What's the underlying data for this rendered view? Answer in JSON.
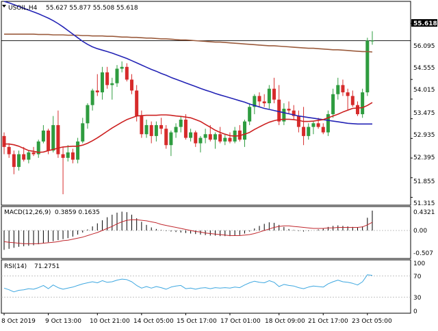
{
  "header": {
    "symbol": "USOIL,H4",
    "ohlc": "55.627 55.877 55.508 55.618"
  },
  "colors": {
    "bull": "#2e9c3f",
    "bear": "#d62b2b",
    "ma_fast": "#cc1f1f",
    "ma_slow": "#2323b5",
    "ma_long": "#9a5a3b",
    "macd_signal": "#c0262c",
    "rsi_line": "#3da7e0",
    "axis": "#000000",
    "grid_dot": "#b0b0b0"
  },
  "chart_data": [
    {
      "type": "candlestick",
      "title": "USOIL,H4",
      "current_price": "55.618",
      "ylim": [
        51.1,
        56.7
      ],
      "y_ticks": [
        "56.095",
        "55.618",
        "54.555",
        "54.015",
        "53.475",
        "52.935",
        "52.395",
        "51.855",
        "51.315"
      ],
      "x_ticks": [
        "8 Oct 2019",
        "9 Oct 13:00",
        "10 Oct 21:00",
        "14 Oct 05:00",
        "15 Oct 17:00",
        "17 Oct 01:00",
        "18 Oct 09:00",
        "21 Oct 17:00",
        "23 Oct 05:00"
      ],
      "candles": [
        [
          53.0,
          53.1,
          52.5,
          52.7
        ],
        [
          52.7,
          52.8,
          52.4,
          52.5
        ],
        [
          52.5,
          52.6,
          51.95,
          52.15
        ],
        [
          52.15,
          52.6,
          52.05,
          52.5
        ],
        [
          52.5,
          52.7,
          52.3,
          52.35
        ],
        [
          52.35,
          52.6,
          52.25,
          52.55
        ],
        [
          52.55,
          52.7,
          52.45,
          52.5
        ],
        [
          52.5,
          52.9,
          52.4,
          52.85
        ],
        [
          52.85,
          53.3,
          52.8,
          53.15
        ],
        [
          53.15,
          53.2,
          52.5,
          52.6
        ],
        [
          52.6,
          53.55,
          52.55,
          53.3
        ],
        [
          53.3,
          53.7,
          52.4,
          52.5
        ],
        [
          52.5,
          52.7,
          51.4,
          52.4
        ],
        [
          52.4,
          52.75,
          52.3,
          52.55
        ],
        [
          52.55,
          52.65,
          52.25,
          52.35
        ],
        [
          52.35,
          52.95,
          52.25,
          52.85
        ],
        [
          52.85,
          53.5,
          52.8,
          53.35
        ],
        [
          53.35,
          53.9,
          53.2,
          53.85
        ],
        [
          53.85,
          54.3,
          53.7,
          54.25
        ],
        [
          54.25,
          54.7,
          54.1,
          54.2
        ],
        [
          54.2,
          54.9,
          54.0,
          54.75
        ],
        [
          54.75,
          54.9,
          54.3,
          54.4
        ],
        [
          54.4,
          54.6,
          54.0,
          54.45
        ],
        [
          54.45,
          54.95,
          54.35,
          54.85
        ],
        [
          54.85,
          55.05,
          54.75,
          54.9
        ],
        [
          54.9,
          55.0,
          54.5,
          54.55
        ],
        [
          54.55,
          54.7,
          54.15,
          54.25
        ],
        [
          54.25,
          54.4,
          53.4,
          53.55
        ],
        [
          53.55,
          53.7,
          52.95,
          53.05
        ],
        [
          53.05,
          53.45,
          52.95,
          53.3
        ],
        [
          53.3,
          53.4,
          52.8,
          53.0
        ],
        [
          53.0,
          53.4,
          52.85,
          53.3
        ],
        [
          53.3,
          53.5,
          53.05,
          53.2
        ],
        [
          53.2,
          53.3,
          52.65,
          52.75
        ],
        [
          52.75,
          53.15,
          52.45,
          53.1
        ],
        [
          53.1,
          53.35,
          52.95,
          53.25
        ],
        [
          53.25,
          53.55,
          53.1,
          53.45
        ],
        [
          53.45,
          53.6,
          52.9,
          52.95
        ],
        [
          52.95,
          53.2,
          52.85,
          53.1
        ],
        [
          53.1,
          53.15,
          52.7,
          52.8
        ],
        [
          52.8,
          53.0,
          52.55,
          52.95
        ],
        [
          52.95,
          53.2,
          52.8,
          53.05
        ],
        [
          53.05,
          53.3,
          52.85,
          52.9
        ],
        [
          52.9,
          53.1,
          52.65,
          53.05
        ],
        [
          53.05,
          53.25,
          52.8,
          52.85
        ],
        [
          52.85,
          53.05,
          52.75,
          52.95
        ],
        [
          52.95,
          53.1,
          52.8,
          52.85
        ],
        [
          52.85,
          53.25,
          52.8,
          53.15
        ],
        [
          53.15,
          53.3,
          52.85,
          52.9
        ],
        [
          52.9,
          53.45,
          52.7,
          53.4
        ],
        [
          53.4,
          53.9,
          53.3,
          53.8
        ],
        [
          53.8,
          54.15,
          53.6,
          54.1
        ],
        [
          54.1,
          54.2,
          53.8,
          53.95
        ],
        [
          53.95,
          54.15,
          53.8,
          53.9
        ],
        [
          53.9,
          54.4,
          53.75,
          54.3
        ],
        [
          54.3,
          54.6,
          53.9,
          54.0
        ],
        [
          54.0,
          54.4,
          53.3,
          53.4
        ],
        [
          53.4,
          53.9,
          53.3,
          53.75
        ],
        [
          53.75,
          53.95,
          53.6,
          53.7
        ],
        [
          53.7,
          53.85,
          53.45,
          53.55
        ],
        [
          53.55,
          53.7,
          53.1,
          53.25
        ],
        [
          53.25,
          53.8,
          52.75,
          53.0
        ],
        [
          53.0,
          53.35,
          52.9,
          53.25
        ],
        [
          53.25,
          53.4,
          53.05,
          53.35
        ],
        [
          53.35,
          53.5,
          53.2,
          53.25
        ],
        [
          53.25,
          53.35,
          53.05,
          53.1
        ],
        [
          53.1,
          53.7,
          53.0,
          53.6
        ],
        [
          53.6,
          54.3,
          53.5,
          54.15
        ],
        [
          54.15,
          54.6,
          54.0,
          54.4
        ],
        [
          54.4,
          54.55,
          54.1,
          54.2
        ],
        [
          54.2,
          54.3,
          53.7,
          54.1
        ],
        [
          54.1,
          54.25,
          53.8,
          53.85
        ],
        [
          53.85,
          53.95,
          53.55,
          53.6
        ],
        [
          53.6,
          54.3,
          53.5,
          54.2
        ],
        [
          54.2,
          55.7,
          54.1,
          55.62
        ],
        [
          55.62,
          55.88,
          55.51,
          55.62
        ]
      ],
      "ma_fast": [
        52.78,
        52.78,
        52.76,
        52.72,
        52.66,
        52.6,
        52.58,
        52.55,
        52.56,
        52.6,
        52.63,
        52.67,
        52.7,
        52.71,
        52.72,
        52.72,
        52.75,
        52.8,
        52.87,
        52.95,
        53.04,
        53.13,
        53.22,
        53.3,
        53.38,
        53.45,
        53.5,
        53.55,
        53.56,
        53.57,
        53.57,
        53.57,
        53.58,
        53.58,
        53.57,
        53.55,
        53.54,
        53.52,
        53.5,
        53.45,
        53.4,
        53.32,
        53.24,
        53.16,
        53.1,
        53.05,
        53.01,
        53.0,
        53.01,
        53.05,
        53.1,
        53.18,
        53.25,
        53.32,
        53.38,
        53.42,
        53.45,
        53.46,
        53.46,
        53.45,
        53.43,
        53.4,
        53.4,
        53.41,
        53.43,
        53.45,
        53.5,
        53.55,
        53.6,
        53.66,
        53.71,
        53.76,
        53.77,
        53.78,
        53.84,
        53.92
      ],
      "ma_slow": [
        56.7,
        56.66,
        56.61,
        56.56,
        56.51,
        56.46,
        56.41,
        56.36,
        56.3,
        56.24,
        56.17,
        56.09,
        56.0,
        55.9,
        55.8,
        55.7,
        55.6,
        55.52,
        55.45,
        55.4,
        55.36,
        55.32,
        55.28,
        55.23,
        55.18,
        55.13,
        55.07,
        55.01,
        54.95,
        54.89,
        54.83,
        54.78,
        54.72,
        54.67,
        54.61,
        54.56,
        54.51,
        54.46,
        54.41,
        54.36,
        54.31,
        54.26,
        54.22,
        54.17,
        54.13,
        54.09,
        54.05,
        54.01,
        53.97,
        53.93,
        53.88,
        53.84,
        53.8,
        53.76,
        53.73,
        53.7,
        53.67,
        53.64,
        53.61,
        53.58,
        53.55,
        53.53,
        53.51,
        53.49,
        53.47,
        53.45,
        53.43,
        53.41,
        53.39,
        53.37,
        53.35,
        53.34,
        53.33,
        53.33,
        53.33,
        53.33
      ],
      "ma_long": [
        55.8,
        55.8,
        55.8,
        55.8,
        55.8,
        55.8,
        55.8,
        55.79,
        55.79,
        55.79,
        55.78,
        55.78,
        55.78,
        55.77,
        55.77,
        55.77,
        55.76,
        55.76,
        55.75,
        55.75,
        55.75,
        55.74,
        55.74,
        55.73,
        55.72,
        55.72,
        55.71,
        55.71,
        55.7,
        55.69,
        55.69,
        55.68,
        55.67,
        55.67,
        55.66,
        55.65,
        55.64,
        55.64,
        55.63,
        55.62,
        55.61,
        55.6,
        55.59,
        55.58,
        55.58,
        55.57,
        55.56,
        55.55,
        55.54,
        55.53,
        55.52,
        55.51,
        55.5,
        55.49,
        55.48,
        55.48,
        55.47,
        55.46,
        55.45,
        55.44,
        55.43,
        55.42,
        55.41,
        55.41,
        55.4,
        55.39,
        55.38,
        55.37,
        55.37,
        55.36,
        55.35,
        55.34,
        55.33,
        55.32,
        55.32,
        55.31
      ]
    },
    {
      "type": "bar",
      "title": "MACD(12,26,9)",
      "values_label": "0.3859 0.1635",
      "ylim": [
        -0.55,
        0.47
      ],
      "y_ticks": [
        "0.4321",
        "0.00",
        "-0.507"
      ],
      "histogram": [
        -0.38,
        -0.36,
        -0.34,
        -0.32,
        -0.31,
        -0.3,
        -0.29,
        -0.27,
        -0.25,
        -0.23,
        -0.21,
        -0.19,
        -0.17,
        -0.15,
        -0.12,
        -0.08,
        -0.04,
        0.02,
        0.08,
        0.14,
        0.2,
        0.26,
        0.31,
        0.35,
        0.37,
        0.36,
        0.31,
        0.24,
        0.17,
        0.11,
        0.06,
        0.03,
        0.01,
        -0.01,
        -0.02,
        -0.03,
        -0.04,
        -0.05,
        -0.06,
        -0.07,
        -0.08,
        -0.09,
        -0.1,
        -0.1,
        -0.11,
        -0.11,
        -0.11,
        -0.1,
        -0.09,
        -0.06,
        -0.02,
        0.04,
        0.09,
        0.13,
        0.16,
        0.15,
        0.11,
        0.07,
        0.03,
        0.01,
        -0.01,
        -0.02,
        -0.01,
        0.0,
        0.02,
        0.04,
        0.07,
        0.09,
        0.1,
        0.09,
        0.08,
        0.07,
        0.06,
        0.08,
        0.25,
        0.39
      ],
      "signal": [
        -0.22,
        -0.23,
        -0.24,
        -0.25,
        -0.26,
        -0.26,
        -0.26,
        -0.26,
        -0.25,
        -0.24,
        -0.23,
        -0.22,
        -0.2,
        -0.19,
        -0.17,
        -0.15,
        -0.13,
        -0.1,
        -0.07,
        -0.04,
        0.0,
        0.04,
        0.08,
        0.13,
        0.17,
        0.2,
        0.21,
        0.21,
        0.2,
        0.19,
        0.17,
        0.15,
        0.12,
        0.1,
        0.08,
        0.06,
        0.04,
        0.02,
        0.0,
        -0.02,
        -0.03,
        -0.05,
        -0.06,
        -0.07,
        -0.08,
        -0.09,
        -0.1,
        -0.1,
        -0.1,
        -0.09,
        -0.08,
        -0.06,
        -0.03,
        0.0,
        0.03,
        0.06,
        0.08,
        0.09,
        0.09,
        0.08,
        0.07,
        0.06,
        0.05,
        0.04,
        0.04,
        0.04,
        0.05,
        0.05,
        0.06,
        0.06,
        0.06,
        0.06,
        0.06,
        0.07,
        0.11,
        0.16
      ]
    },
    {
      "type": "line",
      "title": "RSI(14)",
      "values_label": "71.2751",
      "ylim": [
        0,
        100
      ],
      "y_ticks": [
        "100",
        "70",
        "30",
        "0"
      ],
      "levels": [
        70,
        30
      ],
      "values": [
        47,
        44,
        40,
        43,
        44,
        46,
        45,
        48,
        52,
        46,
        53,
        48,
        45,
        47,
        49,
        52,
        55,
        57,
        59,
        57,
        61,
        58,
        59,
        62,
        64,
        63,
        59,
        52,
        47,
        50,
        47,
        50,
        48,
        45,
        49,
        51,
        52,
        46,
        47,
        45,
        47,
        48,
        46,
        48,
        47,
        48,
        47,
        49,
        48,
        53,
        57,
        60,
        58,
        57,
        61,
        58,
        50,
        54,
        52,
        51,
        48,
        46,
        49,
        51,
        50,
        49,
        55,
        59,
        62,
        59,
        58,
        56,
        53,
        59,
        72,
        71
      ]
    }
  ]
}
